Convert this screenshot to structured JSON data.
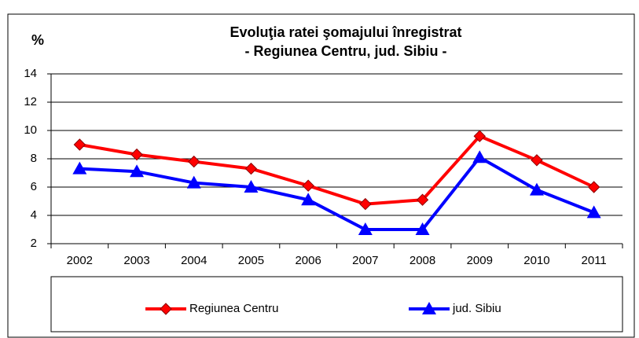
{
  "chart_data": {
    "type": "line",
    "title": "Evoluţia ratei şomajului înregistrat",
    "subtitle": "- Regiunea Centru, jud. Sibiu -",
    "y_label": "%",
    "categories": [
      "2002",
      "2003",
      "2004",
      "2005",
      "2006",
      "2007",
      "2008",
      "2009",
      "2010",
      "2011"
    ],
    "series": [
      {
        "name": "Regiunea Centru",
        "color": "#ff0000",
        "marker": "diamond",
        "values": [
          9.0,
          8.3,
          7.8,
          7.3,
          6.1,
          4.8,
          5.1,
          9.6,
          7.9,
          6.0
        ]
      },
      {
        "name": "jud. Sibiu",
        "color": "#0000ff",
        "marker": "triangle",
        "values": [
          7.3,
          7.1,
          6.3,
          6.0,
          5.1,
          3.0,
          3.0,
          8.1,
          5.8,
          4.2
        ]
      }
    ],
    "ylim": [
      2,
      14
    ],
    "yticks": [
      2,
      4,
      6,
      8,
      10,
      12,
      14
    ],
    "grid": true,
    "legend": "bottom"
  }
}
